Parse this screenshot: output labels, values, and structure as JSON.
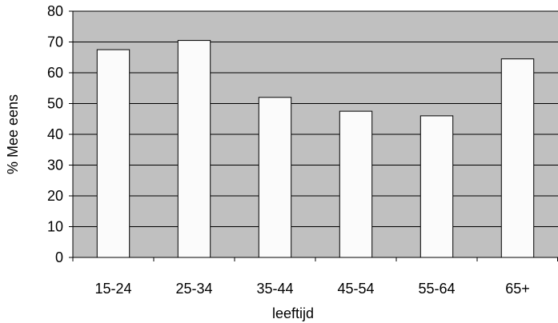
{
  "chart_data": {
    "type": "bar",
    "title": "",
    "xlabel": "leeftijd",
    "ylabel": "% Mee eens",
    "categories": [
      "15-24",
      "25-34",
      "35-44",
      "45-54",
      "55-64",
      "65+"
    ],
    "values": [
      67.5,
      70.5,
      52,
      47.5,
      46,
      64.5
    ],
    "ylim": [
      0,
      80
    ],
    "yticks": [
      0,
      10,
      20,
      30,
      40,
      50,
      60,
      70,
      80
    ],
    "ytick_labels": [
      "0",
      "10",
      "20",
      "30",
      "40",
      "50",
      "60",
      "70",
      "80"
    ],
    "grid": true,
    "legend": "none",
    "colors": {
      "plot_background": "#c0c0c0",
      "bar_fill": "#fbfbfb",
      "bar_stroke": "#000000",
      "gridline": "#000000"
    }
  }
}
